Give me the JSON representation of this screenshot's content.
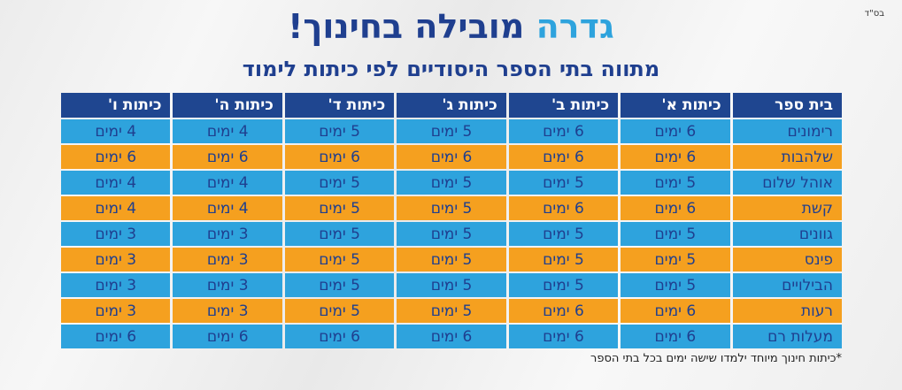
{
  "bsd": "בס\"ד",
  "title": {
    "main": "גדרה",
    "rest": "מובילה בחינוך!"
  },
  "subtitle": "מתווה בתי הספר היסודיים לפי כיתות לימוד",
  "headers": [
    "בית ספר",
    "כיתות א'",
    "כיתות ב'",
    "כיתות ג'",
    "כיתות ד'",
    "כיתות ה'",
    "כיתות ו'"
  ],
  "rows": [
    {
      "school": "רימונים",
      "values": [
        "6 ימים",
        "6 ימים",
        "5 ימים",
        "5 ימים",
        "4 ימים",
        "4 ימים"
      ]
    },
    {
      "school": "שלהבות",
      "values": [
        "6 ימים",
        "6 ימים",
        "6 ימים",
        "6 ימים",
        "6 ימים",
        "6 ימים"
      ]
    },
    {
      "school": "אוהל שלום",
      "values": [
        "5 ימים",
        "5 ימים",
        "5 ימים",
        "5 ימים",
        "4 ימים",
        "4 ימים"
      ]
    },
    {
      "school": "קשת",
      "values": [
        "6 ימים",
        "6 ימים",
        "5 ימים",
        "5 ימים",
        "4 ימים",
        "4 ימים"
      ]
    },
    {
      "school": "גוונים",
      "values": [
        "5 ימים",
        "5 ימים",
        "5 ימים",
        "5 ימים",
        "3 ימים",
        "3 ימים"
      ]
    },
    {
      "school": "פינס",
      "values": [
        "5 ימים",
        "5 ימים",
        "5 ימים",
        "5 ימים",
        "3 ימים",
        "3 ימים"
      ]
    },
    {
      "school": "הבילויים",
      "values": [
        "5 ימים",
        "5 ימים",
        "5 ימים",
        "5 ימים",
        "3 ימים",
        "3 ימים"
      ]
    },
    {
      "school": "רעות",
      "values": [
        "6 ימים",
        "6 ימים",
        "5 ימים",
        "5 ימים",
        "3 ימים",
        "3 ימים"
      ]
    },
    {
      "school": "מעלות רם",
      "values": [
        "6 ימים",
        "6 ימים",
        "6 ימים",
        "6 ימים",
        "6 ימים",
        "6 ימים"
      ]
    }
  ],
  "footnote": "*כיתות חינוך מיוחד ילמדו שישה ימים בכל בתי הספר",
  "colors": {
    "header": "#1f4690",
    "blue_row": "#2ea3dd",
    "orange_row": "#f5a01f",
    "title": "#1f3f8f",
    "accent": "#2ea3dd"
  }
}
